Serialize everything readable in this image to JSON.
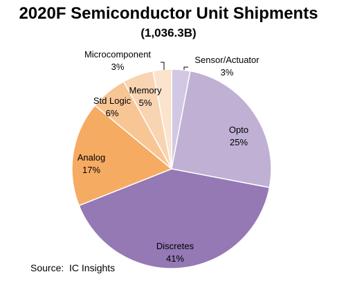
{
  "chart_data": {
    "type": "pie",
    "title": "2020F Semiconductor Unit Shipments",
    "subtitle": "(1,036.3B)",
    "source": "Source:  IC Insights",
    "slices": [
      {
        "label": "Sensor/Actuator",
        "value": 3,
        "display": "3%",
        "color": "#d3c8e3"
      },
      {
        "label": "Opto",
        "value": 25,
        "display": "25%",
        "color": "#bfb0d4"
      },
      {
        "label": "Discretes",
        "value": 41,
        "display": "41%",
        "color": "#9479b5"
      },
      {
        "label": "Analog",
        "value": 17,
        "display": "17%",
        "color": "#f6ab62"
      },
      {
        "label": "Std Logic",
        "value": 6,
        "display": "6%",
        "color": "#f8c595"
      },
      {
        "label": "Memory",
        "value": 5,
        "display": "5%",
        "color": "#f9d4b3"
      },
      {
        "label": "Microcomponent",
        "value": 3,
        "display": "3%",
        "color": "#fbe3cc"
      }
    ]
  }
}
